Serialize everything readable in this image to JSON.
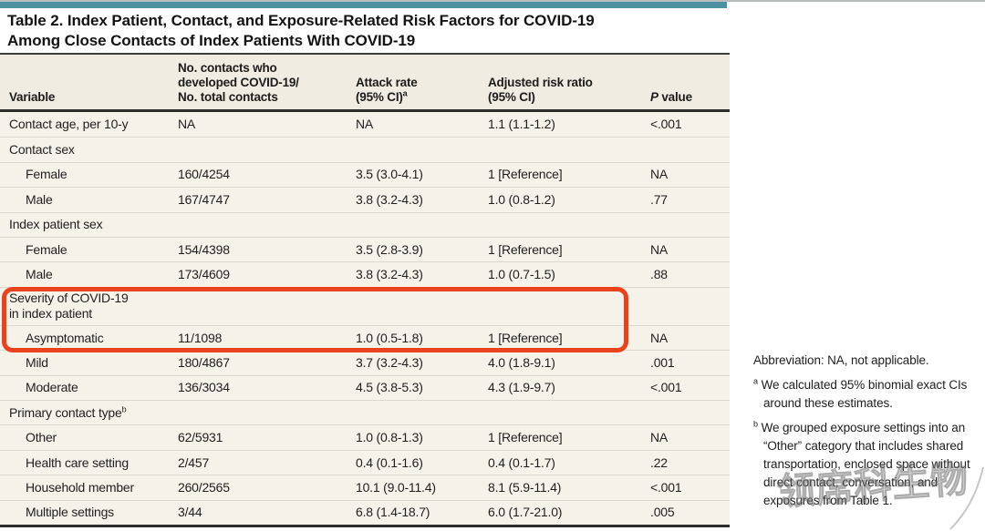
{
  "title": {
    "line1": "Table 2. Index Patient, Contact, and Exposure-Related Risk Factors for COVID-19",
    "line2": "Among Close Contacts of Index Patients With COVID-19"
  },
  "table": {
    "columns": [
      {
        "lines": [
          "Variable"
        ]
      },
      {
        "lines": [
          "No. contacts who",
          "developed COVID-19/",
          "No. total contacts"
        ]
      },
      {
        "lines": [
          "Attack rate",
          "(95% CI)"
        ],
        "sup": "a"
      },
      {
        "lines": [
          "Adjusted risk ratio",
          "(95% CI)"
        ]
      },
      {
        "lines": [
          "P value"
        ],
        "italic_first": true
      }
    ],
    "rows": [
      {
        "label": "Contact age, per 10-y",
        "values": [
          "NA",
          "NA",
          "1.1 (1.1-1.2)",
          "<.001"
        ]
      },
      {
        "label": "Contact sex",
        "section": true
      },
      {
        "label": "Female",
        "indent": true,
        "values": [
          "160/4254",
          "3.5 (3.0-4.1)",
          "1 [Reference]",
          "NA"
        ]
      },
      {
        "label": "Male",
        "indent": true,
        "values": [
          "167/4747",
          "3.8 (3.2-4.3)",
          "1.0 (0.8-1.2)",
          ".77"
        ]
      },
      {
        "label": "Index patient sex",
        "section": true
      },
      {
        "label": "Female",
        "indent": true,
        "values": [
          "154/4398",
          "3.5 (2.8-3.9)",
          "1 [Reference]",
          "NA"
        ]
      },
      {
        "label": "Male",
        "indent": true,
        "values": [
          "173/4609",
          "3.8 (3.2-4.3)",
          "1.0 (0.7-1.5)",
          ".88"
        ]
      },
      {
        "lines": [
          "Severity of COVID-19",
          "in index patient"
        ],
        "section": true,
        "tall": true,
        "highlighted": true
      },
      {
        "label": "Asymptomatic",
        "indent": true,
        "highlighted": true,
        "values": [
          "11/1098",
          "1.0 (0.5-1.8)",
          "1 [Reference]",
          "NA"
        ]
      },
      {
        "label": "Mild",
        "indent": true,
        "values": [
          "180/4867",
          "3.7 (3.2-4.3)",
          "4.0 (1.8-9.1)",
          ".001"
        ]
      },
      {
        "label": "Moderate",
        "indent": true,
        "values": [
          "136/3034",
          "4.5 (3.8-5.3)",
          "4.3 (1.9-9.7)",
          "<.001"
        ]
      },
      {
        "label": "Primary contact type",
        "sup": "b",
        "section": true
      },
      {
        "label": "Other",
        "indent": true,
        "values": [
          "62/5931",
          "1.0 (0.8-1.3)",
          "1 [Reference]",
          "NA"
        ]
      },
      {
        "label": "Health care setting",
        "indent": true,
        "values": [
          "2/457",
          "0.4 (0.1-1.6)",
          "0.4 (0.1-1.7)",
          ".22"
        ]
      },
      {
        "label": "Household member",
        "indent": true,
        "values": [
          "260/2565",
          "10.1 (9.0-11.4)",
          "8.1 (5.9-11.4)",
          "<.001"
        ]
      },
      {
        "label": "Multiple settings",
        "indent": true,
        "values": [
          "3/44",
          "6.8 (1.4-18.7)",
          "6.0 (1.7-21.0)",
          ".005"
        ]
      }
    ]
  },
  "highlight": {
    "color": "#e8431d",
    "covers": [
      "Severity of COVID-19 in index patient",
      "Asymptomatic row"
    ]
  },
  "footnotes": {
    "abbreviation": "Abbreviation: NA, not applicable.",
    "a_marker": "a",
    "a": "We calculated 95% binomial exact CIs around these estimates.",
    "b_marker": "b",
    "b": "We grouped exposure settings into an “Other” category that includes shared transportation, enclosed space without direct contact, conversation, and exposures from Table 1."
  },
  "watermark": {
    "text": "领席科生物"
  },
  "colors": {
    "accent_bar": "#4d90a2",
    "header_bg": "#f0ece1",
    "row_bg": "#f5f2e9",
    "rule_dark": "#2d2d2b",
    "highlight_box": "#e8431d"
  }
}
